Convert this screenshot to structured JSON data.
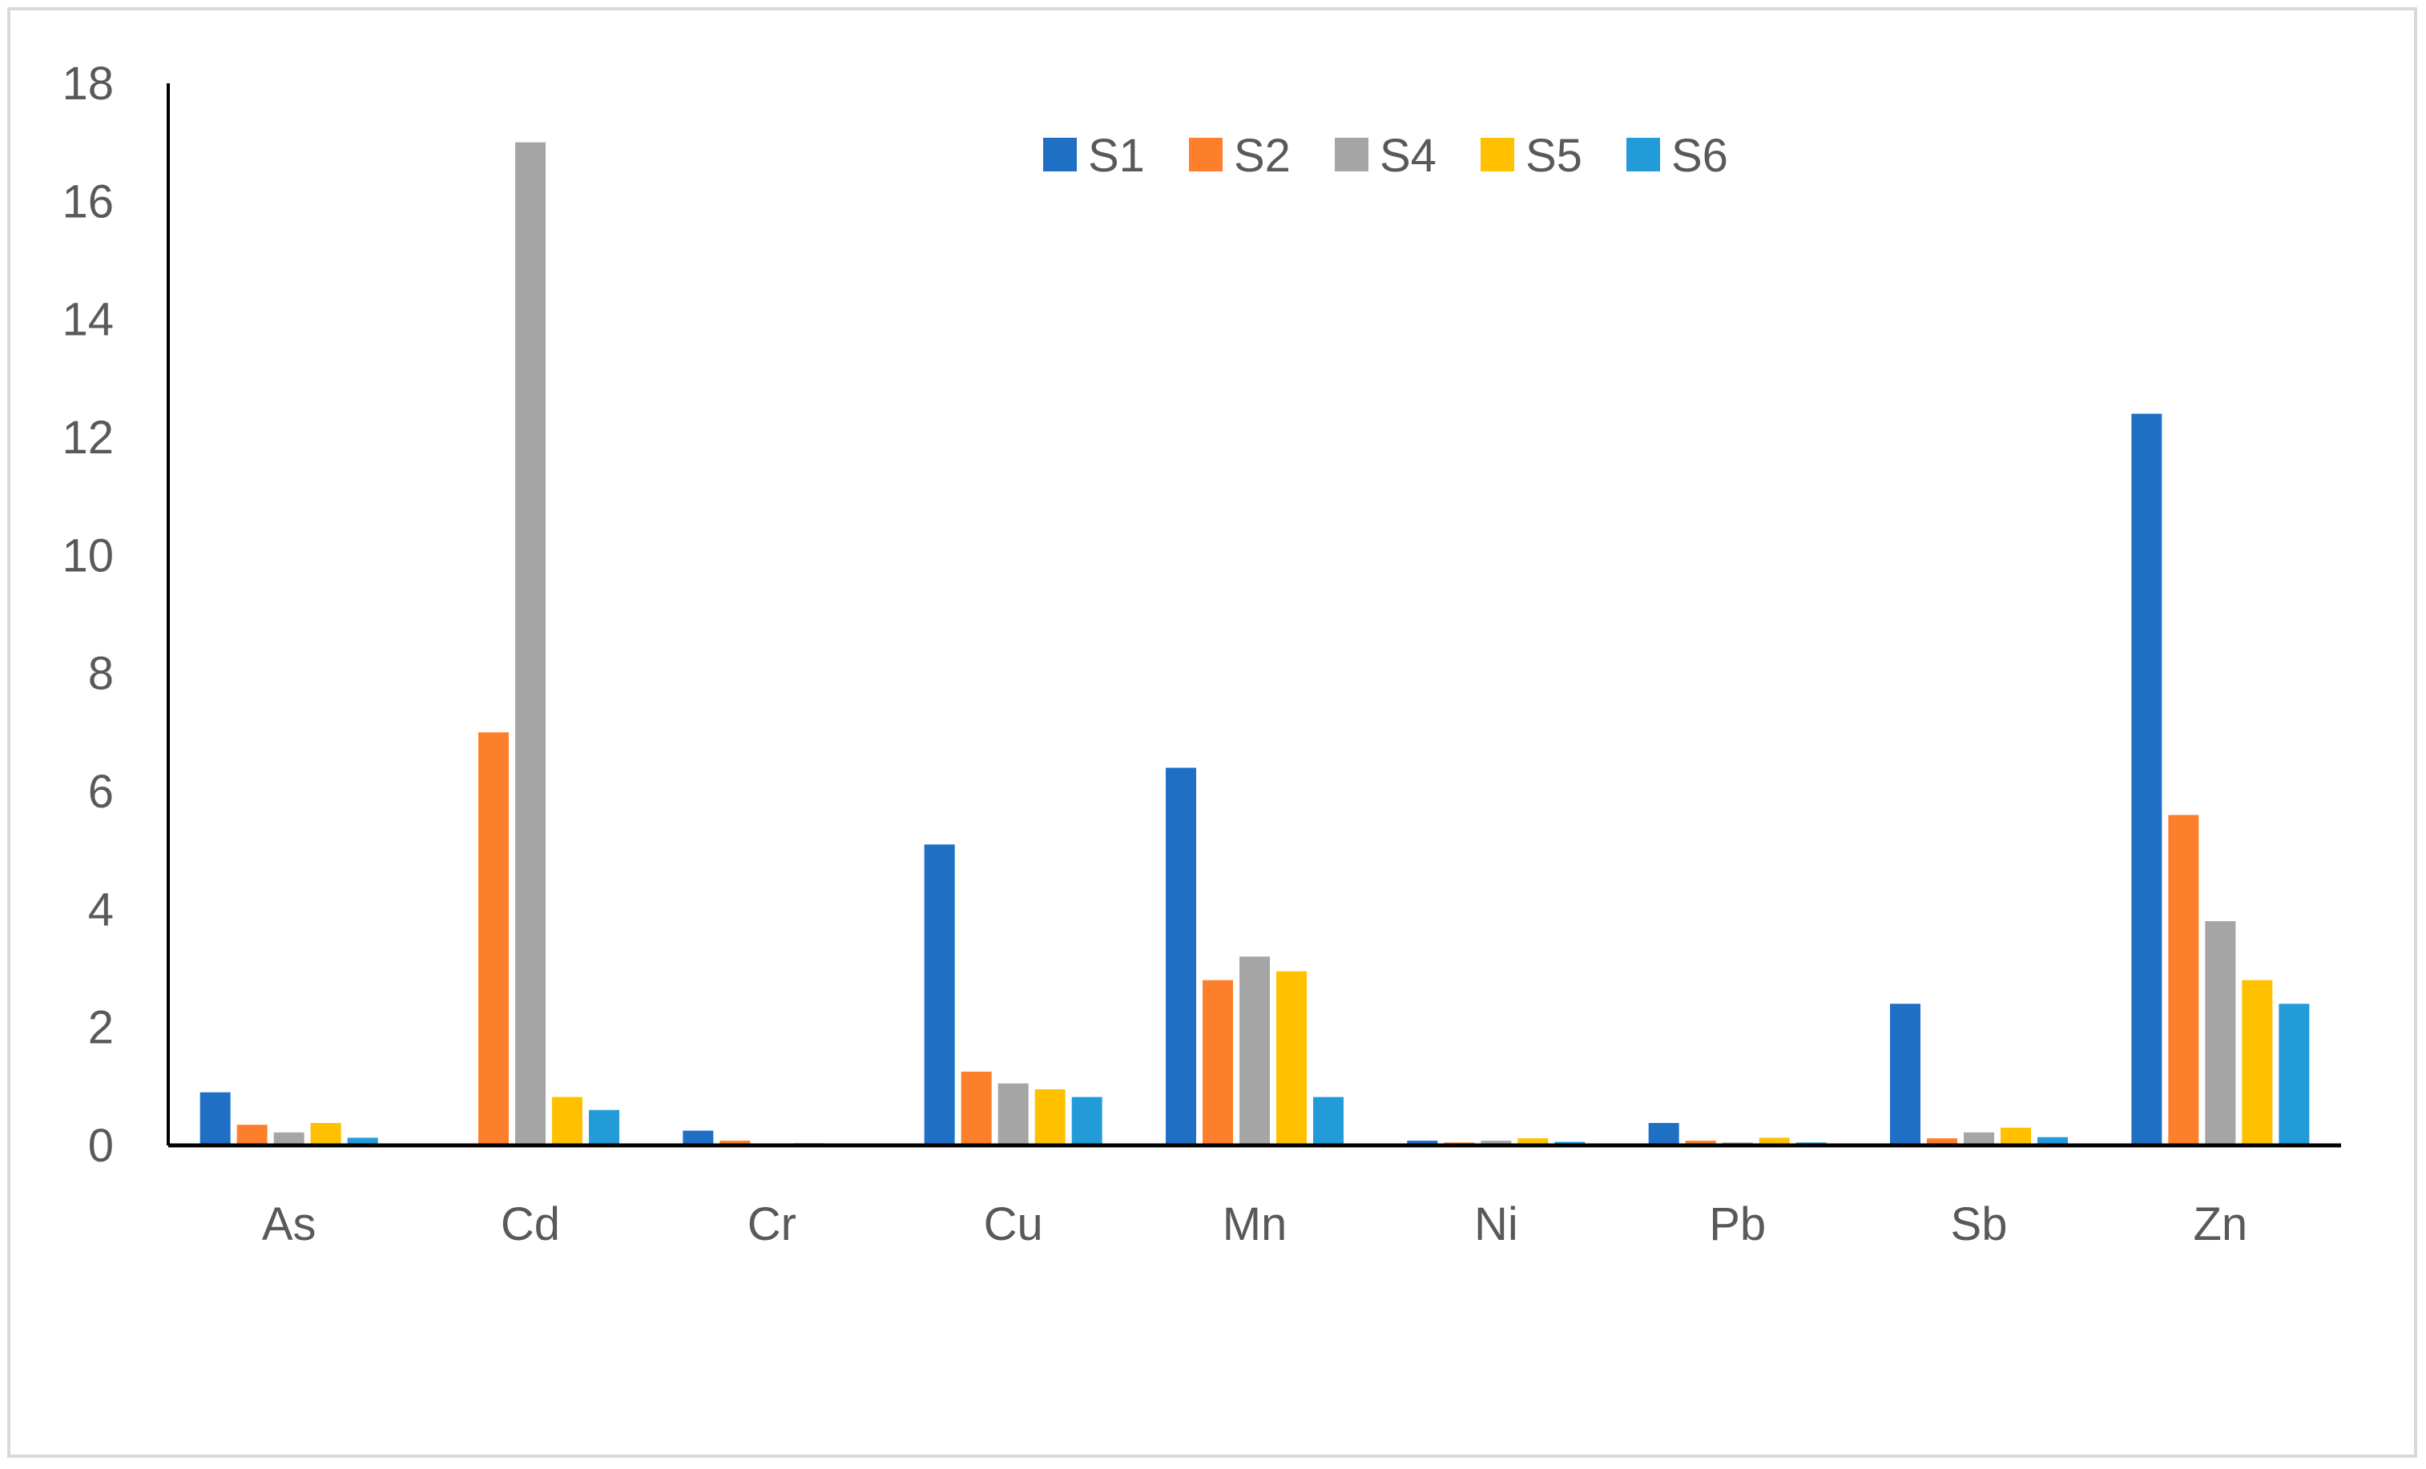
{
  "chart_data": {
    "type": "bar",
    "categories": [
      "As",
      "Cd",
      "Cr",
      "Cu",
      "Mn",
      "Ni",
      "Pb",
      "Sb",
      "Zn"
    ],
    "series": [
      {
        "name": "S1",
        "color": "#1f6fc5",
        "values": [
          0.9,
          0,
          0.25,
          5.1,
          6.4,
          0.08,
          0.38,
          2.4,
          12.4
        ]
      },
      {
        "name": "S2",
        "color": "#fd7f2b",
        "values": [
          0.35,
          7.0,
          0.08,
          1.25,
          2.8,
          0.05,
          0.08,
          0.12,
          5.6
        ]
      },
      {
        "name": "S4",
        "color": "#a5a5a5",
        "values": [
          0.22,
          17.0,
          0.02,
          1.05,
          3.2,
          0.08,
          0.05,
          0.22,
          3.8
        ]
      },
      {
        "name": "S5",
        "color": "#ffc000",
        "values": [
          0.38,
          0.82,
          0.04,
          0.95,
          2.95,
          0.12,
          0.13,
          0.3,
          2.8
        ]
      },
      {
        "name": "S6",
        "color": "#239bd8",
        "values": [
          0.13,
          0.6,
          0.01,
          0.82,
          0.82,
          0.06,
          0.05,
          0.14,
          2.4
        ]
      }
    ],
    "yticks": [
      0,
      2,
      4,
      6,
      8,
      10,
      12,
      14,
      16,
      18
    ],
    "ylim": [
      0,
      18
    ],
    "title": "",
    "xlabel": "",
    "ylabel": "",
    "legend_position": "top-center",
    "grid": false
  }
}
